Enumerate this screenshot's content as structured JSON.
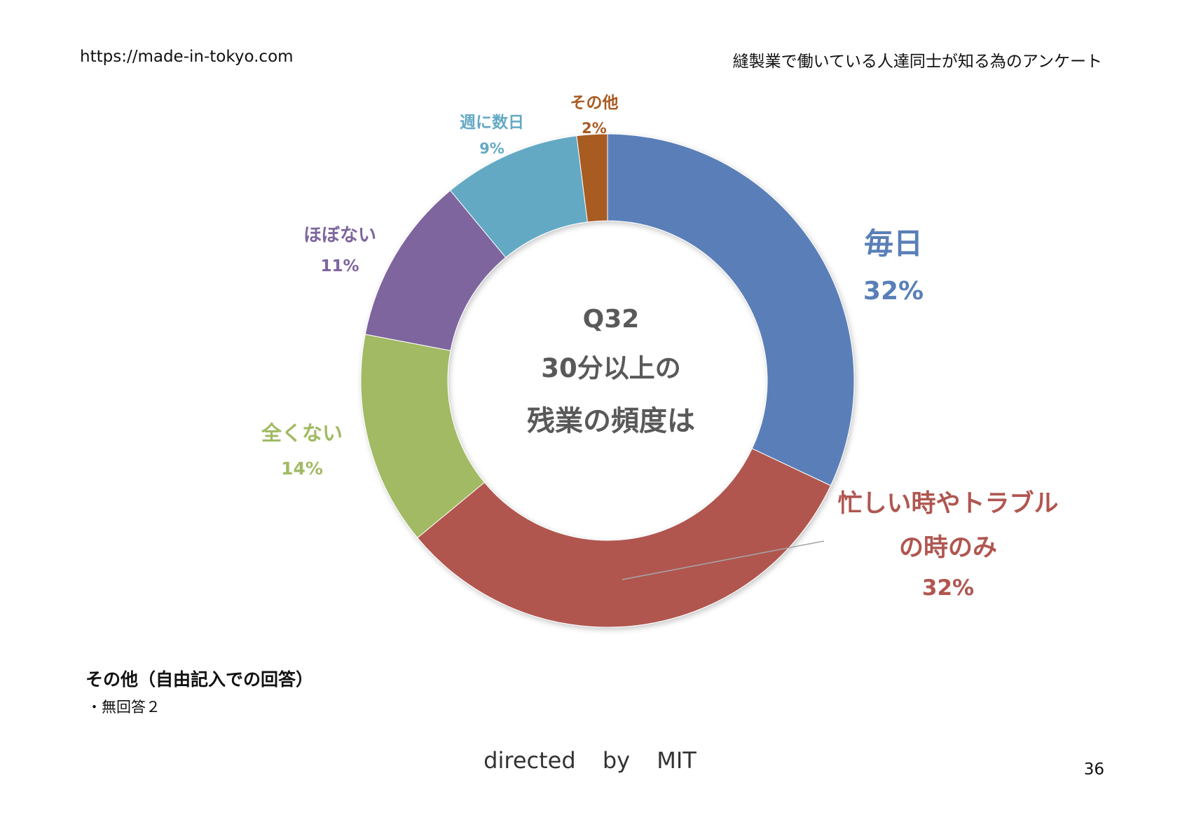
{
  "header": {
    "url": "https://made-in-tokyo.com",
    "survey_title": "縫製業で働いている人達同士が知る為のアンケート"
  },
  "chart_data": {
    "type": "pie",
    "donut": true,
    "center_text": {
      "question": "Q32",
      "line1": "30分以上の",
      "line2": "残業の頻度は"
    },
    "slices": [
      {
        "name": "毎日",
        "value": 32,
        "value_label": "32%",
        "color": "#5A7FB8"
      },
      {
        "name": "忙しい時やトラブル の時のみ",
        "name_line1": "忙しい時やトラブル",
        "name_line2": "の時のみ",
        "value": 32,
        "value_label": "32%",
        "color": "#B05650"
      },
      {
        "name": "全くない",
        "value": 14,
        "value_label": "14%",
        "color": "#A1BA64"
      },
      {
        "name": "ほぼない",
        "value": 11,
        "value_label": "11%",
        "color": "#7E659E"
      },
      {
        "name": "週に数日",
        "value": 9,
        "value_label": "9%",
        "color": "#64A9C4"
      },
      {
        "name": "その他",
        "value": 2,
        "value_label": "2%",
        "color": "#A85B22"
      }
    ]
  },
  "notes": {
    "title": "その他（自由記入での回答）",
    "item": "・無回答２"
  },
  "footer": {
    "credit": "directed by MIT",
    "page_number": "36"
  }
}
